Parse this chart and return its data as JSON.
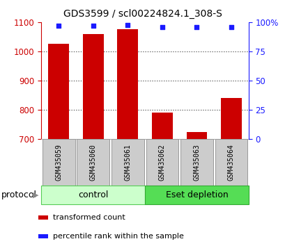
{
  "title": "GDS3599 / scl00224824.1_308-S",
  "categories": [
    "GSM435059",
    "GSM435060",
    "GSM435061",
    "GSM435062",
    "GSM435063",
    "GSM435064"
  ],
  "bar_values": [
    1025,
    1060,
    1075,
    790,
    725,
    840
  ],
  "dot_values": [
    97,
    97,
    97.5,
    96,
    96,
    96
  ],
  "ylim_left": [
    700,
    1100
  ],
  "ylim_right": [
    0,
    100
  ],
  "yticks_left": [
    700,
    800,
    900,
    1000,
    1100
  ],
  "yticks_right": [
    0,
    25,
    50,
    75,
    100
  ],
  "ytick_labels_right": [
    "0",
    "25",
    "50",
    "75",
    "100%"
  ],
  "bar_color": "#cc0000",
  "dot_color": "#1a1aff",
  "bar_width": 0.6,
  "groups": [
    {
      "label": "control",
      "indices": [
        0,
        1,
        2
      ],
      "color": "#ccffcc",
      "edge": "#55cc55"
    },
    {
      "label": "Eset depletion",
      "indices": [
        3,
        4,
        5
      ],
      "color": "#55dd55",
      "edge": "#33aa33"
    }
  ],
  "protocol_label": "protocol",
  "legend_items": [
    {
      "color": "#cc0000",
      "label": "transformed count"
    },
    {
      "color": "#1a1aff",
      "label": "percentile rank within the sample"
    }
  ],
  "grid_color": "#555555",
  "background_color": "#ffffff",
  "left_tick_color": "#cc0000",
  "right_tick_color": "#1a1aff",
  "label_box_color": "#cccccc",
  "label_box_edge": "#999999"
}
